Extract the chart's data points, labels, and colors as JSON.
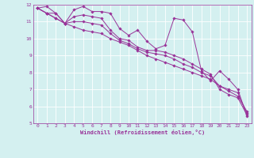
{
  "xlabel": "Windchill (Refroidissement éolien,°C)",
  "x_values": [
    0,
    1,
    2,
    3,
    4,
    5,
    6,
    7,
    8,
    9,
    10,
    11,
    12,
    13,
    14,
    15,
    16,
    17,
    18,
    19,
    20,
    21,
    22,
    23
  ],
  "series": [
    [
      11.8,
      11.9,
      11.5,
      10.9,
      11.7,
      11.9,
      11.6,
      11.6,
      11.5,
      10.6,
      10.2,
      10.5,
      9.85,
      9.4,
      9.6,
      11.2,
      11.1,
      10.4,
      8.1,
      7.5,
      8.1,
      7.6,
      7.0,
      5.4
    ],
    [
      11.8,
      11.5,
      11.5,
      10.9,
      11.3,
      11.4,
      11.3,
      11.2,
      10.5,
      10.0,
      9.9,
      9.5,
      9.3,
      9.3,
      9.2,
      9.0,
      8.8,
      8.5,
      8.2,
      7.9,
      7.0,
      6.7,
      6.5,
      5.5
    ],
    [
      11.8,
      11.5,
      11.2,
      10.9,
      11.0,
      11.0,
      10.9,
      10.8,
      10.3,
      9.9,
      9.7,
      9.4,
      9.2,
      9.1,
      9.0,
      8.8,
      8.5,
      8.3,
      8.0,
      7.8,
      7.2,
      7.0,
      6.8,
      5.6
    ],
    [
      11.8,
      11.5,
      11.2,
      10.9,
      10.7,
      10.5,
      10.4,
      10.3,
      10.0,
      9.8,
      9.6,
      9.3,
      9.0,
      8.8,
      8.6,
      8.4,
      8.2,
      8.0,
      7.8,
      7.6,
      7.2,
      6.9,
      6.6,
      5.7
    ]
  ],
  "line_color": "#993399",
  "background_color": "#d4f0f0",
  "grid_color": "#ffffff",
  "text_color": "#993399",
  "ylim": [
    5,
    12
  ],
  "xlim": [
    -0.5,
    23.5
  ],
  "yticks": [
    5,
    6,
    7,
    8,
    9,
    10,
    11,
    12
  ],
  "xticks": [
    0,
    1,
    2,
    3,
    4,
    5,
    6,
    7,
    8,
    9,
    10,
    11,
    12,
    13,
    14,
    15,
    16,
    17,
    18,
    19,
    20,
    21,
    22,
    23
  ],
  "marker": "D",
  "markersize": 1.8,
  "linewidth": 0.7,
  "tick_fontsize": 4.5,
  "xlabel_fontsize": 5.0
}
